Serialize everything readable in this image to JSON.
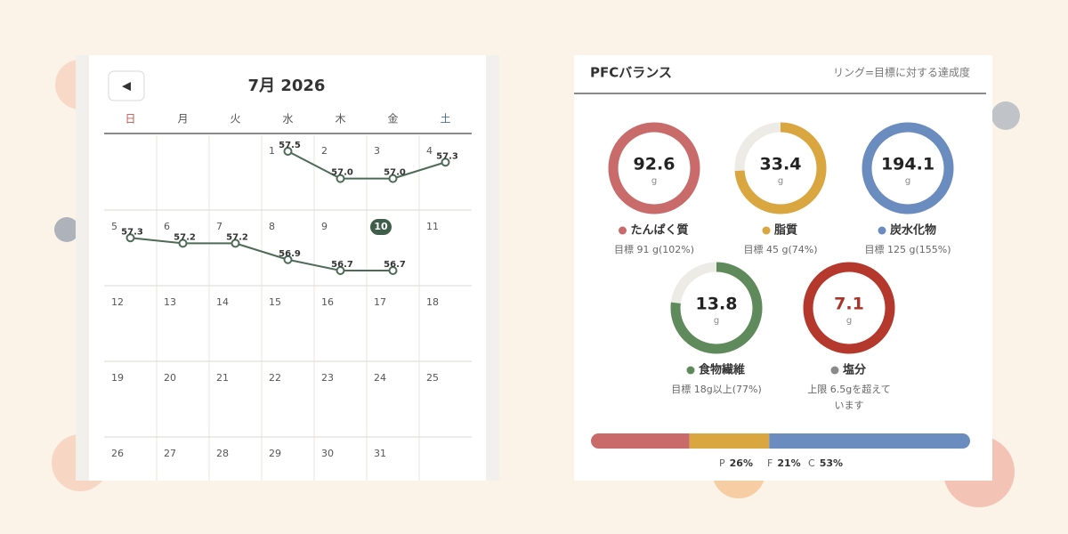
{
  "calendar": {
    "title": "7月 2026",
    "prev_button": "◀",
    "weekdays": [
      "日",
      "月",
      "火",
      "水",
      "木",
      "金",
      "土"
    ],
    "weeks": [
      [
        null,
        null,
        null,
        1,
        2,
        3,
        4
      ],
      [
        5,
        6,
        7,
        8,
        9,
        10,
        11
      ],
      [
        12,
        13,
        14,
        15,
        16,
        17,
        18
      ],
      [
        19,
        20,
        21,
        22,
        23,
        24,
        25
      ],
      [
        26,
        27,
        28,
        29,
        30,
        31,
        null
      ]
    ],
    "today": 10,
    "weights": [
      {
        "day": 1,
        "value": 57.5
      },
      {
        "day": 2,
        "value": 57.0,
        "label": "57.0"
      },
      {
        "day": 3,
        "value": 57.0,
        "label": "57.0"
      },
      {
        "day": 4,
        "value": 57.3
      },
      {
        "day": 5,
        "value": 57.3
      },
      {
        "day": 6,
        "value": 57.2
      },
      {
        "day": 7,
        "value": 57.2
      },
      {
        "day": 8,
        "value": 56.9
      },
      {
        "day": 9,
        "value": 56.7
      },
      {
        "day": 10,
        "value": 56.7
      }
    ]
  },
  "pfc": {
    "title": "PFCバランス",
    "note": "リング=目標に対する達成度",
    "rings": [
      {
        "value": 92.6,
        "unit": "g",
        "name": "たんぱく質",
        "target": "目標 91 g(102%)",
        "percent": 102,
        "color": "#c96b6b"
      },
      {
        "value": 33.4,
        "unit": "g",
        "name": "脂質",
        "target": "目標 45 g(74%)",
        "percent": 74,
        "color": "#d9a640"
      },
      {
        "value": 194.1,
        "unit": "g",
        "name": "炭水化物",
        "target": "目標 125 g(155%)",
        "percent": 155,
        "color": "#6a8cbf"
      },
      {
        "value": 13.8,
        "unit": "g",
        "name": "食物繊維",
        "target": "目標 18g以上(77%)",
        "percent": 77,
        "color": "#5f8a5b"
      },
      {
        "value": 7.1,
        "unit": "g",
        "name": "塩分",
        "target": "上限 6.5gを超えています",
        "percent": 109,
        "color": "#b5382c",
        "dot_color": "#8a8a8a",
        "value_color": "#a8342a"
      }
    ],
    "balance": [
      {
        "label": "P",
        "value": 26,
        "value_label": "26%",
        "color": "#c96b6b"
      },
      {
        "label": "F",
        "value": 21,
        "value_label": "21%",
        "color": "#d9a640"
      },
      {
        "label": "C",
        "value": 53,
        "value_label": "53%",
        "color": "#6a8cbf"
      }
    ]
  }
}
